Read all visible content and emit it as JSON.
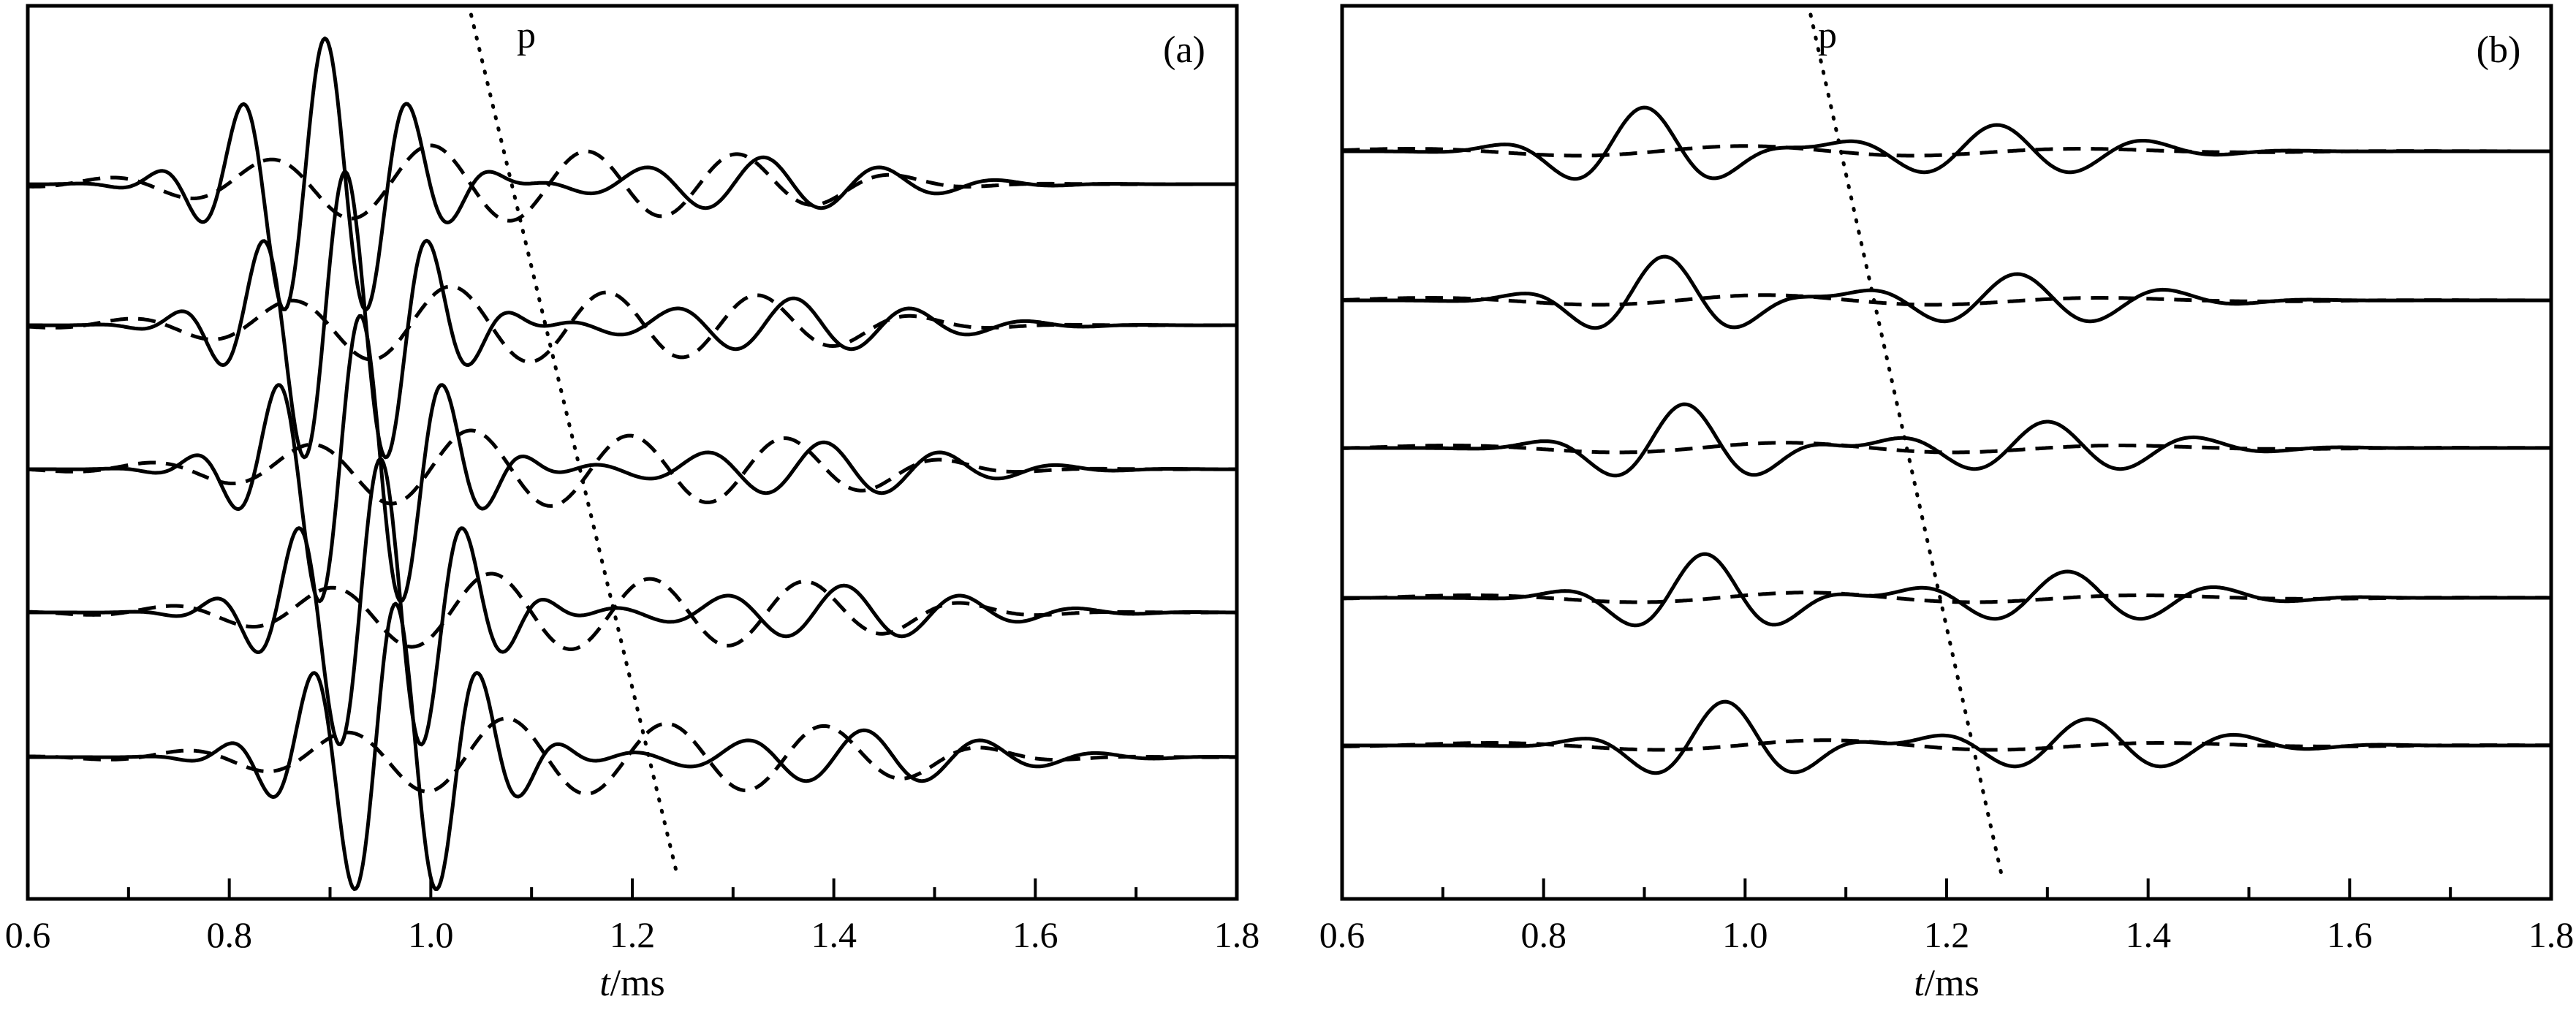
{
  "chart_data": [
    {
      "type": "line",
      "panel_label": "(a)",
      "xlabel_italic": "t",
      "xlabel_rest": "/ms",
      "xlim": [
        0.6,
        1.8
      ],
      "x_ticks": [
        "0.6",
        "0.8",
        "1.0",
        "1.2",
        "1.4",
        "1.6",
        "1.8"
      ],
      "y_ticks": [],
      "annotation": "p",
      "p_line": {
        "x_start": 1.04,
        "x_end": 1.245
      },
      "traces": [
        {
          "solid": {
            "packets": [
              [
                0.895,
                1.9,
                0.075,
                12.0
              ],
              [
                1.33,
                0.35,
                0.12,
                8.5
              ]
            ],
            "trend": 0.0
          },
          "dashed": {
            "packets": [
              [
                1.0,
                0.5,
                0.17,
                6.2
              ],
              [
                1.3,
                0.32,
                0.11,
                6.2
              ]
            ],
            "trend": 0.0
          }
        },
        {
          "solid": {
            "packets": [
              [
                0.915,
                2.0,
                0.075,
                12.0
              ],
              [
                1.36,
                0.35,
                0.12,
                8.5
              ]
            ],
            "trend": 0.0
          },
          "dashed": {
            "packets": [
              [
                1.02,
                0.5,
                0.17,
                6.2
              ],
              [
                1.32,
                0.32,
                0.11,
                6.2
              ]
            ],
            "trend": 0.0
          }
        },
        {
          "solid": {
            "packets": [
              [
                0.93,
                2.0,
                0.075,
                12.0
              ],
              [
                1.39,
                0.35,
                0.12,
                8.5
              ]
            ],
            "trend": 0.0
          },
          "dashed": {
            "packets": [
              [
                1.04,
                0.5,
                0.17,
                6.2
              ],
              [
                1.35,
                0.32,
                0.11,
                6.2
              ]
            ],
            "trend": 0.0
          }
        },
        {
          "solid": {
            "packets": [
              [
                0.95,
                2.0,
                0.075,
                12.0
              ],
              [
                1.41,
                0.35,
                0.12,
                8.5
              ]
            ],
            "trend": 0.0
          },
          "dashed": {
            "packets": [
              [
                1.06,
                0.5,
                0.17,
                6.2
              ],
              [
                1.37,
                0.32,
                0.11,
                6.2
              ]
            ],
            "trend": 0.0
          }
        },
        {
          "solid": {
            "packets": [
              [
                0.965,
                2.0,
                0.075,
                12.0
              ],
              [
                1.43,
                0.35,
                0.12,
                8.5
              ]
            ],
            "trend": 0.0
          },
          "dashed": {
            "packets": [
              [
                1.075,
                0.5,
                0.17,
                6.2
              ],
              [
                1.39,
                0.32,
                0.11,
                6.2
              ]
            ],
            "trend": 0.0
          }
        }
      ]
    },
    {
      "type": "line",
      "panel_label": "(b)",
      "xlabel_italic": "t",
      "xlabel_rest": "/ms",
      "xlim": [
        0.6,
        1.8
      ],
      "x_ticks": [
        "0.6",
        "0.8",
        "1.0",
        "1.2",
        "1.4",
        "1.6",
        "1.8"
      ],
      "y_ticks": [],
      "annotation": "p",
      "p_line": {
        "x_start": 1.065,
        "x_end": 1.255
      },
      "traces": [
        {
          "solid": {
            "packets": [
              [
                0.9,
                1.0,
                0.075,
                6.6
              ],
              [
                1.25,
                0.6,
                0.11,
                6.6
              ]
            ],
            "trend": 0.0
          },
          "dashed": {
            "packets": [
              [
                1.0,
                0.12,
                0.28,
                2.9
              ]
            ],
            "trend": 0.0
          }
        },
        {
          "solid": {
            "packets": [
              [
                0.92,
                1.0,
                0.075,
                6.6
              ],
              [
                1.27,
                0.6,
                0.11,
                6.6
              ]
            ],
            "trend": 0.0
          },
          "dashed": {
            "packets": [
              [
                1.02,
                0.12,
                0.28,
                2.9
              ]
            ],
            "trend": 0.0
          }
        },
        {
          "solid": {
            "packets": [
              [
                0.94,
                1.0,
                0.075,
                6.6
              ],
              [
                1.3,
                0.6,
                0.11,
                6.6
              ]
            ],
            "trend": 0.0
          },
          "dashed": {
            "packets": [
              [
                1.04,
                0.12,
                0.28,
                2.9
              ]
            ],
            "trend": 0.0
          }
        },
        {
          "solid": {
            "packets": [
              [
                0.96,
                1.0,
                0.075,
                6.6
              ],
              [
                1.32,
                0.6,
                0.11,
                6.6
              ]
            ],
            "trend": 0.0
          },
          "dashed": {
            "packets": [
              [
                1.06,
                0.12,
                0.28,
                2.9
              ]
            ],
            "trend": 0.0
          }
        },
        {
          "solid": {
            "packets": [
              [
                0.98,
                1.0,
                0.075,
                6.6
              ],
              [
                1.34,
                0.6,
                0.11,
                6.6
              ]
            ],
            "trend": 0.0
          },
          "dashed": {
            "packets": [
              [
                1.08,
                0.12,
                0.28,
                2.9
              ]
            ],
            "trend": 0.0
          }
        }
      ]
    }
  ]
}
